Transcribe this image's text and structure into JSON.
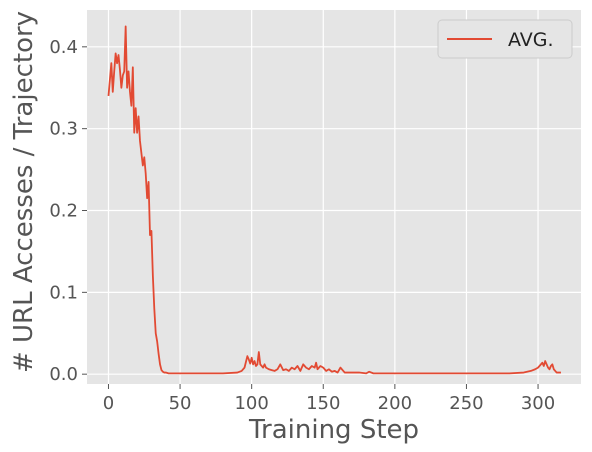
{
  "chart_data": {
    "type": "line",
    "xlabel": "Training Step",
    "ylabel": "# URL Accesses / Trajectory",
    "xlim": [
      -15,
      330
    ],
    "ylim": [
      -0.012,
      0.445
    ],
    "xticks": [
      0,
      50,
      100,
      150,
      200,
      250,
      300
    ],
    "xtick_labels": [
      "0",
      "50",
      "100",
      "150",
      "200",
      "250",
      "300"
    ],
    "yticks": [
      0.0,
      0.1,
      0.2,
      0.3,
      0.4
    ],
    "ytick_labels": [
      "0.0",
      "0.1",
      "0.2",
      "0.3",
      "0.4"
    ],
    "grid": true,
    "legend_position": "top-right",
    "series": [
      {
        "name": "AVG.",
        "color": "#E24A33",
        "x": [
          0,
          1,
          2,
          3,
          4,
          5,
          6,
          7,
          8,
          9,
          10,
          11,
          12,
          13,
          14,
          15,
          16,
          17,
          18,
          19,
          20,
          21,
          22,
          23,
          24,
          25,
          26,
          27,
          28,
          29,
          30,
          31,
          32,
          33,
          34,
          35,
          36,
          37,
          38,
          39,
          40,
          42,
          45,
          50,
          60,
          70,
          80,
          90,
          93,
          95,
          96,
          97,
          98,
          99,
          100,
          101,
          102,
          103,
          104,
          105,
          106,
          107,
          108,
          109,
          110,
          112,
          114,
          116,
          118,
          120,
          122,
          124,
          126,
          128,
          130,
          132,
          134,
          136,
          138,
          140,
          142,
          144,
          145,
          146,
          148,
          150,
          152,
          154,
          156,
          158,
          160,
          162,
          165,
          170,
          175,
          180,
          182,
          185,
          190,
          200,
          210,
          220,
          230,
          240,
          250,
          260,
          270,
          280,
          290,
          295,
          298,
          300,
          302,
          303,
          304,
          305,
          306,
          307,
          308,
          309,
          310,
          311,
          312,
          313,
          314,
          315,
          316
        ],
        "y": [
          0.34,
          0.36,
          0.38,
          0.345,
          0.37,
          0.392,
          0.38,
          0.39,
          0.372,
          0.35,
          0.365,
          0.37,
          0.425,
          0.35,
          0.37,
          0.345,
          0.328,
          0.375,
          0.295,
          0.325,
          0.295,
          0.315,
          0.285,
          0.27,
          0.255,
          0.265,
          0.245,
          0.215,
          0.235,
          0.17,
          0.175,
          0.12,
          0.08,
          0.05,
          0.04,
          0.025,
          0.012,
          0.005,
          0.003,
          0.002,
          0.002,
          0.001,
          0.001,
          0.001,
          0.001,
          0.001,
          0.001,
          0.002,
          0.004,
          0.008,
          0.015,
          0.022,
          0.018,
          0.013,
          0.02,
          0.012,
          0.016,
          0.01,
          0.012,
          0.027,
          0.012,
          0.01,
          0.008,
          0.012,
          0.008,
          0.006,
          0.005,
          0.004,
          0.006,
          0.012,
          0.005,
          0.006,
          0.004,
          0.008,
          0.006,
          0.01,
          0.004,
          0.012,
          0.008,
          0.006,
          0.01,
          0.008,
          0.014,
          0.006,
          0.01,
          0.008,
          0.004,
          0.006,
          0.003,
          0.004,
          0.002,
          0.008,
          0.002,
          0.002,
          0.002,
          0.001,
          0.003,
          0.001,
          0.001,
          0.001,
          0.001,
          0.001,
          0.001,
          0.001,
          0.001,
          0.001,
          0.001,
          0.001,
          0.002,
          0.004,
          0.006,
          0.008,
          0.012,
          0.014,
          0.01,
          0.016,
          0.012,
          0.008,
          0.006,
          0.01,
          0.012,
          0.006,
          0.004,
          0.002,
          0.002,
          0.002,
          0.002
        ]
      }
    ]
  }
}
